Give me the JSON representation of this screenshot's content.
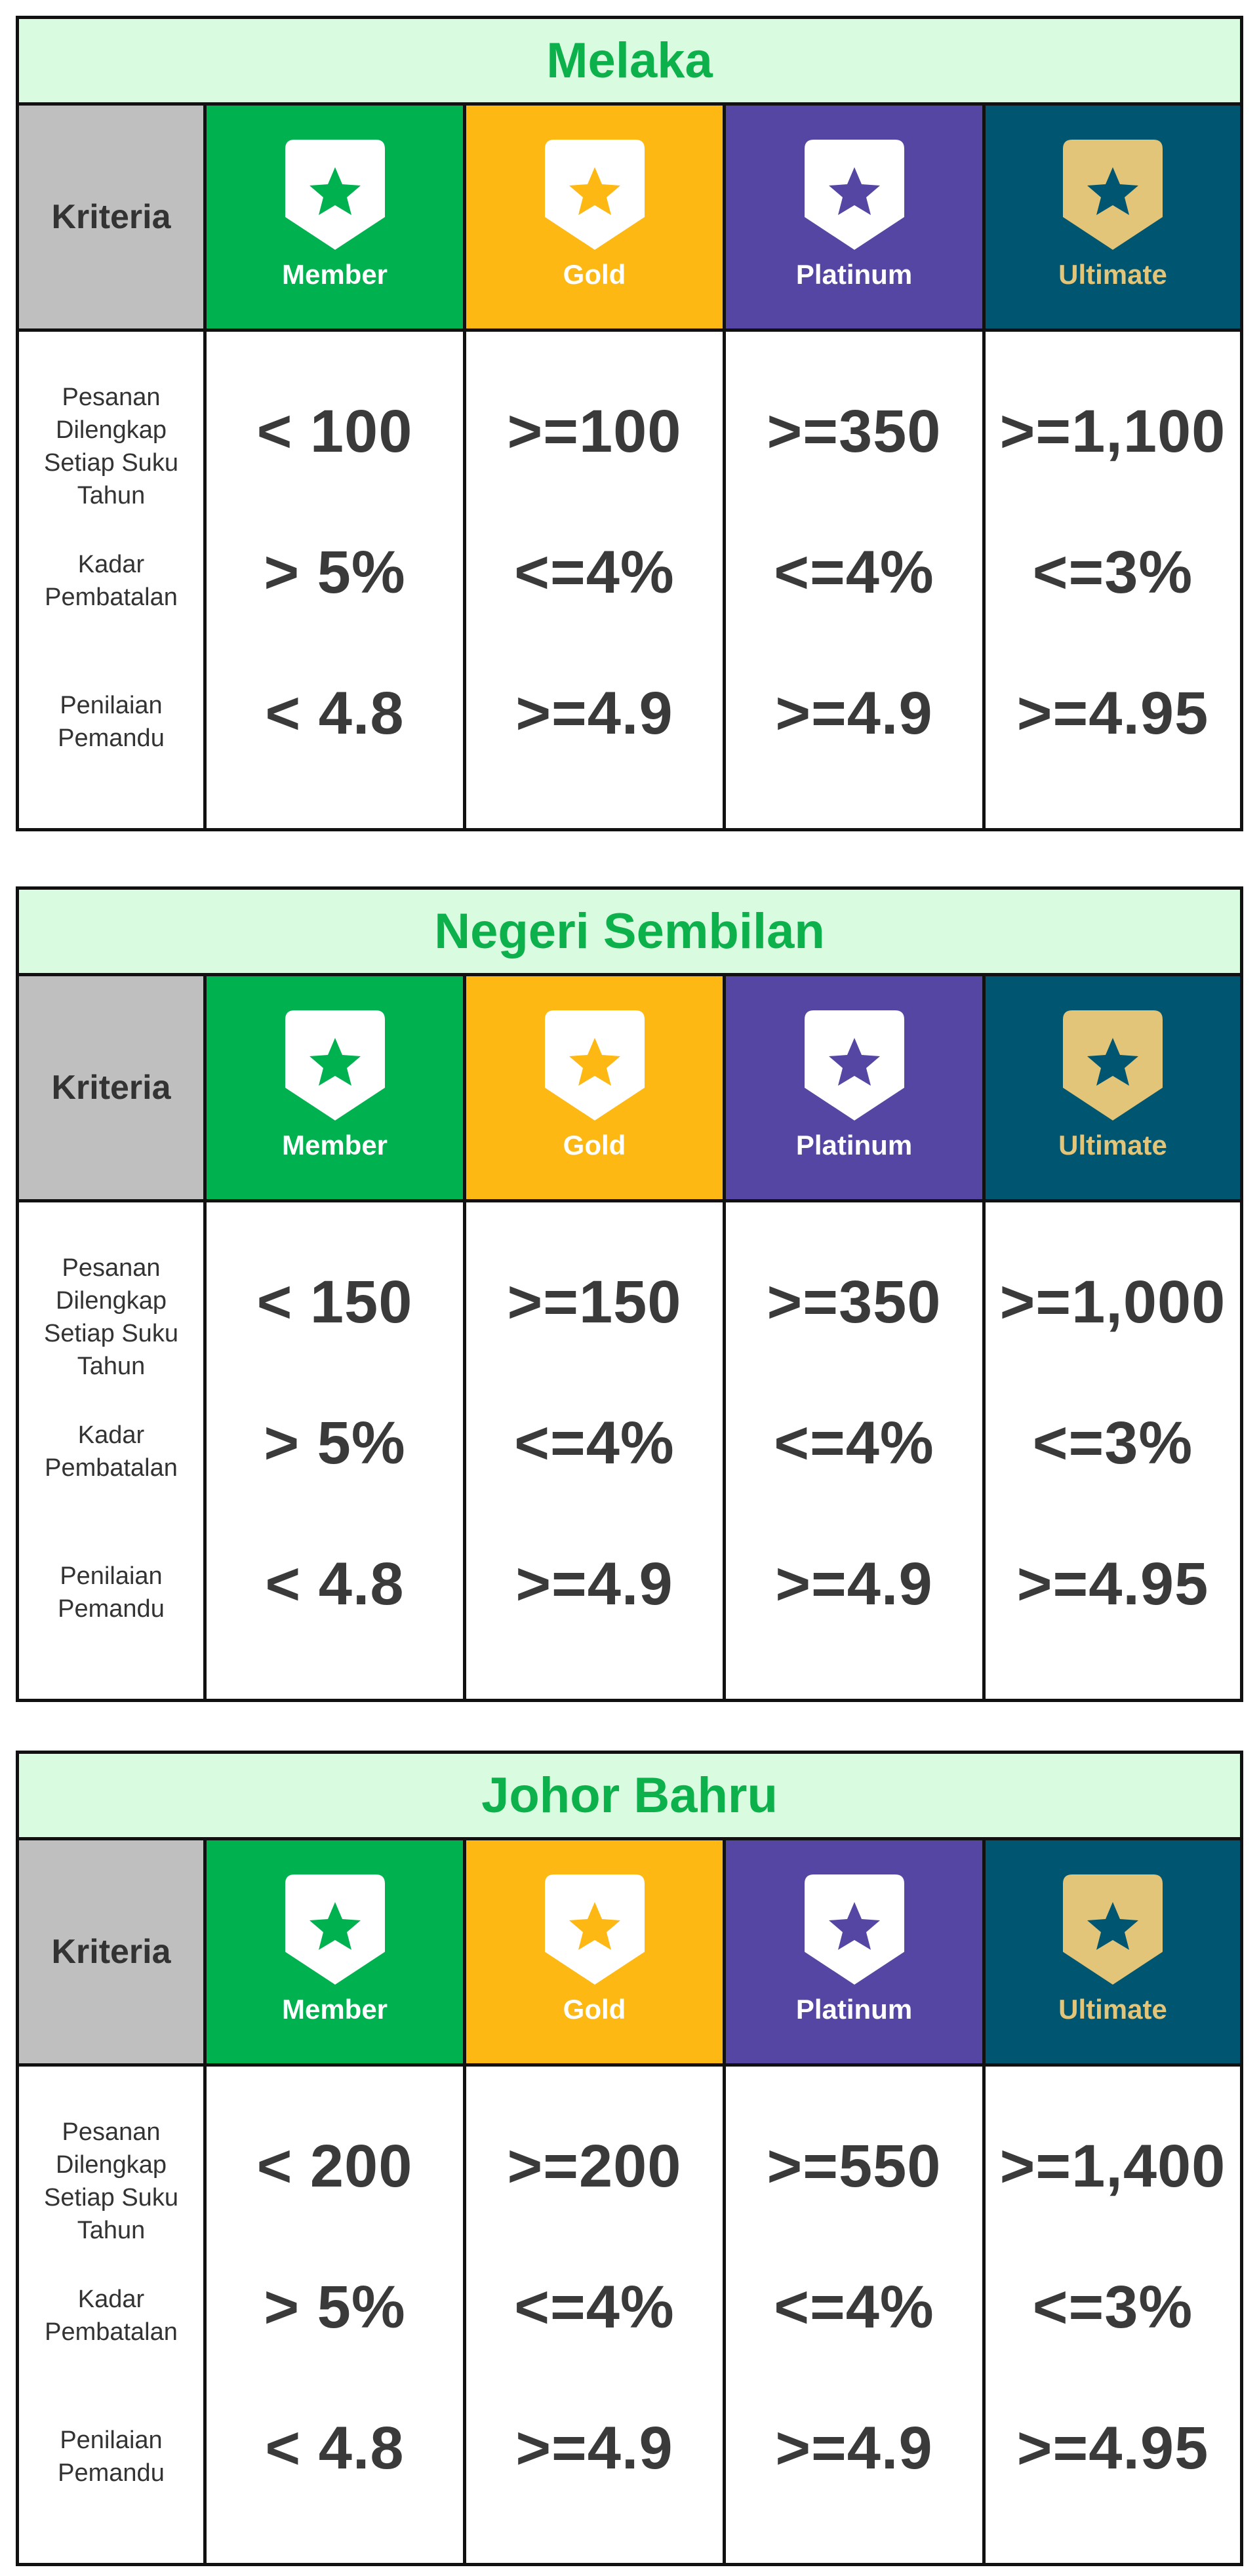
{
  "header_label": "Kriteria",
  "tiers": [
    {
      "name": "Member",
      "bg": "#00b14f",
      "badge": "#ffffff",
      "star": "#00b14f"
    },
    {
      "name": "Gold",
      "bg": "#fdb813",
      "badge": "#ffffff",
      "star": "#fdb813"
    },
    {
      "name": "Platinum",
      "bg": "#5546a4",
      "badge": "#ffffff",
      "star": "#5546a4"
    },
    {
      "name": "Ultimate",
      "bg": "#005670",
      "badge": "#e3c579",
      "star": "#005670"
    }
  ],
  "criteria": [
    "Pesanan Dilengkap Setiap Suku Tahun",
    "Kadar Pembatalan",
    "Penilaian Pemandu"
  ],
  "tables": [
    {
      "title": "Melaka",
      "rows": [
        [
          "< 100",
          ">=100",
          ">=350",
          ">=1,100"
        ],
        [
          "> 5%",
          "<=4%",
          "<=4%",
          "<=3%"
        ],
        [
          "< 4.8",
          ">=4.9",
          ">=4.9",
          ">=4.95"
        ]
      ]
    },
    {
      "title": "Negeri Sembilan",
      "rows": [
        [
          "< 150",
          ">=150",
          ">=350",
          ">=1,000"
        ],
        [
          "> 5%",
          "<=4%",
          "<=4%",
          "<=3%"
        ],
        [
          "< 4.8",
          ">=4.9",
          ">=4.9",
          ">=4.95"
        ]
      ]
    },
    {
      "title": "Johor Bahru",
      "rows": [
        [
          "< 200",
          ">=200",
          ">=550",
          ">=1,400"
        ],
        [
          "> 5%",
          "<=4%",
          "<=4%",
          "<=3%"
        ],
        [
          "< 4.8",
          ">=4.9",
          ">=4.9",
          ">=4.95"
        ]
      ]
    }
  ],
  "colors": {
    "title_text": "#0db14b",
    "title_bg": "#d9fbdf",
    "kriteria_bg": "#bfbfbf",
    "value_text": "#3a3a3a"
  }
}
